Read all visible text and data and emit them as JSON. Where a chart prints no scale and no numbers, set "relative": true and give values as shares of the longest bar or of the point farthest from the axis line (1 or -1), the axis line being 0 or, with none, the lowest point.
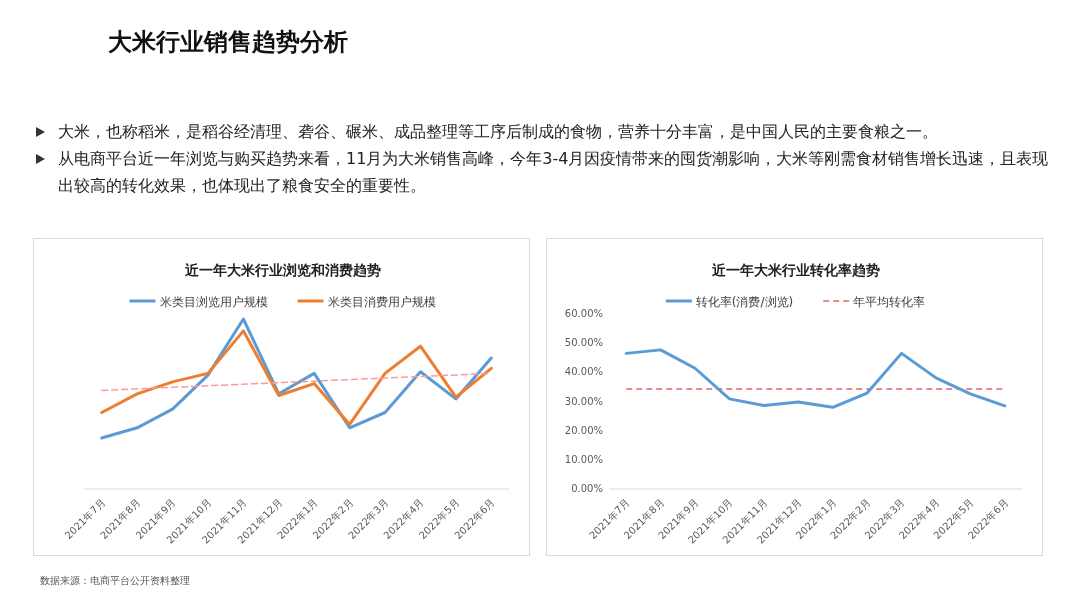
{
  "chart_data": [
    {
      "type": "other",
      "title": "大米行业销售趋势分析",
      "annotations": [
        "大米，也称稻米，是稻谷经清理、砻谷、碾米、成品整理等工序后制成的食物，营养十分丰富，是中国人民的主要食粮之一。",
        "从电商平台近一年浏览与购买趋势来看，11月为大米销售高峰，今年3-4月因疫情带来的囤货潮影响，大米等刚需食材销售增长迅速，且表现出较高的转化效果，也体现出了粮食安全的重要性。",
        "数据来源：电商平台公开资料整理"
      ]
    },
    {
      "type": "line",
      "title": "近一年大米行业浏览和消费趋势",
      "relative": true,
      "legend": "top",
      "tick_labels": "x",
      "categories": [
        "2021年7月",
        "2021年8月",
        "2021年9月",
        "2021年10月",
        "2021年11月",
        "2021年12月",
        "2022年1月",
        "2022年2月",
        "2022年3月",
        "2022年4月",
        "2022年5月",
        "2022年6月"
      ],
      "series": [
        {
          "name": "米类目浏览用户规模",
          "color": "#5b9bd5",
          "values": [
            0.3,
            0.36,
            0.47,
            0.67,
            1.0,
            0.56,
            0.68,
            0.36,
            0.45,
            0.69,
            0.53,
            0.77
          ]
        },
        {
          "name": "米类目消费用户规模",
          "color": "#ed7d31",
          "values": [
            0.45,
            0.56,
            0.63,
            0.68,
            0.93,
            0.55,
            0.62,
            0.38,
            0.68,
            0.84,
            0.54,
            0.71
          ]
        },
        {
          "color": "#ff9999",
          "line_style": "dashed",
          "x": [
            "2021年7月",
            "2022年6月"
          ],
          "values": [
            0.58,
            0.68
          ]
        }
      ]
    },
    {
      "type": "line",
      "title": "近一年大米行业转化率趋势",
      "legend": "top",
      "categories": [
        "2021年7月",
        "2021年8月",
        "2021年9月",
        "2021年10月",
        "2021年11月",
        "2021年12月",
        "2022年1月",
        "2022年2月",
        "2022年3月",
        "2022年4月",
        "2022年5月",
        "2022年6月"
      ],
      "ylim": [
        0,
        60
      ],
      "yticks": [
        {
          "value": 0,
          "label": "0.00%"
        },
        {
          "value": 10,
          "label": "10.00%"
        },
        {
          "value": 20,
          "label": "20.00%"
        },
        {
          "value": 30,
          "label": "30.00%"
        },
        {
          "value": 40,
          "label": "40.00%"
        },
        {
          "value": 50,
          "label": "50.00%"
        },
        {
          "value": 60,
          "label": "60.00%"
        }
      ],
      "series": [
        {
          "name": "转化率(消费/浏览)",
          "color": "#5b9bd5",
          "values": [
            46.5,
            47.7,
            41.4,
            30.9,
            28.6,
            29.8,
            28.0,
            32.9,
            46.5,
            38.1,
            32.6,
            28.5
          ]
        }
      ],
      "ref_lines": [
        {
          "axis": "y",
          "value": 34.3,
          "label": "年平均转化率",
          "color": "#e06666",
          "line_style": "dashed"
        }
      ]
    }
  ]
}
